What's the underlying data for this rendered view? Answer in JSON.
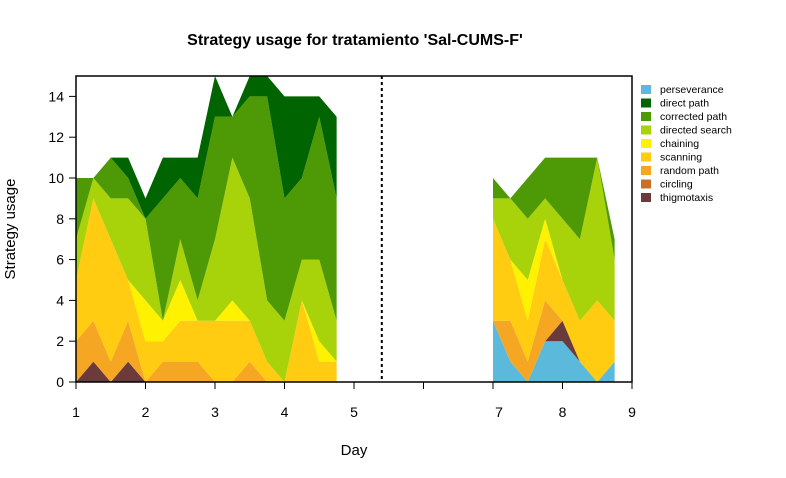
{
  "chart_data": {
    "type": "area",
    "title": "Strategy usage for tratamiento 'Sal-CUMS-F'",
    "xlabel": "Day",
    "ylabel": "Strategy usage",
    "xlim": [
      1,
      9
    ],
    "ylim": [
      0,
      15
    ],
    "x_tick_labels": [
      "1",
      "2",
      "3",
      "4",
      "5",
      "7",
      "8",
      "9"
    ],
    "y_tick_labels": [
      "0",
      "2",
      "4",
      "6",
      "8",
      "10",
      "12",
      "14"
    ],
    "divider_x": 5.4,
    "legend_position": "right",
    "segments": [
      {
        "x": [
          1,
          1.25,
          1.5,
          1.75,
          2,
          2.25,
          2.5,
          2.75,
          3,
          3.25,
          3.5,
          3.75,
          4,
          4.25,
          4.5,
          4.75
        ],
        "series": [
          {
            "name": "perseverance",
            "color": "#5BBADC",
            "values": [
              0,
              0,
              0,
              0,
              0,
              0,
              0,
              0,
              0,
              0,
              0,
              0,
              0,
              0,
              0,
              0
            ]
          },
          {
            "name": "thigmotaxis",
            "color": "#6B3A3A",
            "values": [
              0,
              1,
              0,
              1,
              0,
              0,
              0,
              0,
              0,
              0,
              0,
              0,
              0,
              0,
              0,
              0
            ]
          },
          {
            "name": "circling",
            "color": "#C8702A",
            "values": [
              0,
              0,
              0,
              0,
              0,
              0,
              0,
              0,
              0,
              0,
              0,
              0,
              0,
              0,
              0,
              0
            ]
          },
          {
            "name": "random path",
            "color": "#F5A623",
            "values": [
              2,
              2,
              1,
              2,
              0,
              1,
              1,
              1,
              0,
              0,
              1,
              0,
              0,
              0,
              0,
              0
            ]
          },
          {
            "name": "scanning",
            "color": "#FFCC11",
            "values": [
              3,
              6,
              6,
              2,
              2,
              1,
              2,
              2,
              3,
              3,
              2,
              1,
              0,
              4,
              1,
              1
            ]
          },
          {
            "name": "chaining",
            "color": "#FFF200",
            "values": [
              0,
              0,
              0,
              0,
              2,
              1,
              2,
              0,
              0,
              1,
              0,
              0,
              0,
              0,
              1,
              0
            ]
          },
          {
            "name": "directed search",
            "color": "#A8D20A",
            "values": [
              2,
              1,
              2,
              4,
              4,
              0,
              2,
              1,
              4,
              7,
              6,
              3,
              3,
              2,
              4,
              2
            ]
          },
          {
            "name": "corrected path",
            "color": "#4E9A06",
            "values": [
              3,
              0,
              2,
              1,
              0,
              6,
              3,
              5,
              6,
              2,
              5,
              10,
              6,
              4,
              7,
              6
            ]
          },
          {
            "name": "direct path",
            "color": "#006400",
            "values": [
              0,
              0,
              0,
              1,
              1,
              2,
              1,
              2,
              2,
              0,
              1,
              1,
              5,
              4,
              1,
              4
            ]
          }
        ]
      },
      {
        "x": [
          7,
          7.25,
          7.5,
          7.75,
          8,
          8.25,
          8.5,
          8.75
        ],
        "series": [
          {
            "name": "perseverance",
            "color": "#5BBADC",
            "values": [
              3,
              1,
              0,
              2,
              2,
              1,
              0,
              1
            ]
          },
          {
            "name": "thigmotaxis",
            "color": "#6B3A3A",
            "values": [
              0,
              0,
              0,
              0,
              1,
              0,
              0,
              0
            ]
          },
          {
            "name": "circling",
            "color": "#C8702A",
            "values": [
              0,
              0,
              0,
              0,
              0,
              0,
              0,
              0
            ]
          },
          {
            "name": "random path",
            "color": "#F5A623",
            "values": [
              0,
              2,
              1,
              2,
              0,
              0,
              0,
              0
            ]
          },
          {
            "name": "scanning",
            "color": "#FFCC11",
            "values": [
              5,
              3,
              2,
              3,
              2,
              2,
              4,
              2
            ]
          },
          {
            "name": "chaining",
            "color": "#FFF200",
            "values": [
              0,
              0,
              2,
              1,
              0,
              0,
              0,
              0
            ]
          },
          {
            "name": "directed search",
            "color": "#A8D20A",
            "values": [
              1,
              3,
              3,
              1,
              3,
              4,
              7,
              3
            ]
          },
          {
            "name": "corrected path",
            "color": "#4E9A06",
            "values": [
              1,
              0,
              2,
              2,
              3,
              4,
              0,
              1
            ]
          },
          {
            "name": "direct path",
            "color": "#006400",
            "values": [
              0,
              0,
              0,
              0,
              0,
              0,
              0,
              0
            ]
          }
        ]
      }
    ],
    "legend": [
      {
        "name": "perseverance",
        "color": "#5BBADC"
      },
      {
        "name": "direct path",
        "color": "#006400"
      },
      {
        "name": "corrected path",
        "color": "#4E9A06"
      },
      {
        "name": "directed search",
        "color": "#A8D20A"
      },
      {
        "name": "chaining",
        "color": "#FFF200"
      },
      {
        "name": "scanning",
        "color": "#FFCC11"
      },
      {
        "name": "random path",
        "color": "#F5A623"
      },
      {
        "name": "circling",
        "color": "#C8702A"
      },
      {
        "name": "thigmotaxis",
        "color": "#6B3A3A"
      }
    ]
  }
}
